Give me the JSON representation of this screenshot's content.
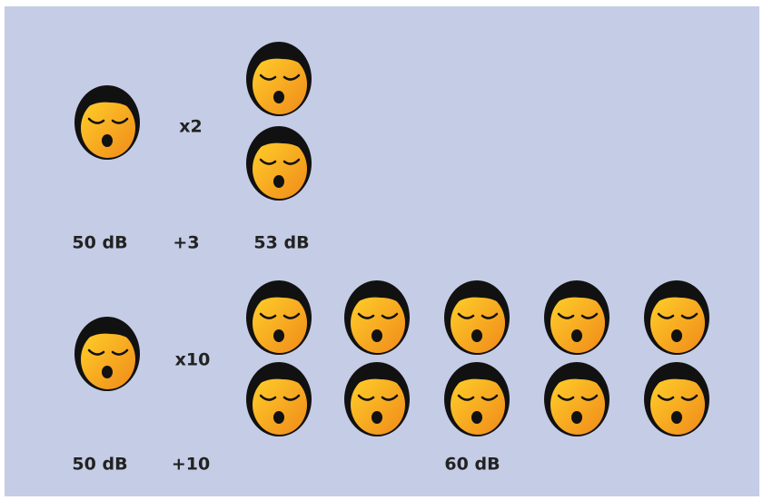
{
  "rows": [
    {
      "factor": "x2",
      "base": "50 dB",
      "increase": "+3",
      "result": "53 dB"
    },
    {
      "factor": "x10",
      "base": "50 dB",
      "increase": "+10",
      "result": "60 dB"
    }
  ]
}
